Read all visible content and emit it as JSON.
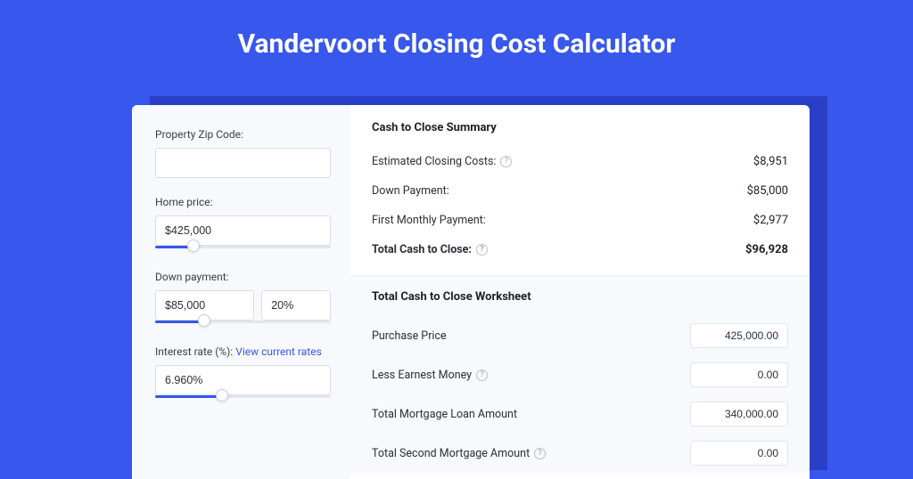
{
  "colors": {
    "page_bg": "#3757ed",
    "card_bg": "#ffffff",
    "panel_bg": "#f7f9fc",
    "shadow_bg": "#2a3fc7",
    "border": "#d8dde6",
    "text": "#2b2f36",
    "link": "#3757ed",
    "slider_fill": "#3757ed",
    "slider_track": "#e2e6ee"
  },
  "title": "Vandervoort Closing Cost Calculator",
  "left": {
    "zip": {
      "label": "Property Zip Code:",
      "value": ""
    },
    "home_price": {
      "label": "Home price:",
      "value": "$425,000",
      "slider_pct": 22
    },
    "down_payment": {
      "label": "Down payment:",
      "value": "$85,000",
      "pct": "20%",
      "slider_pct": 28
    },
    "interest": {
      "label_prefix": "Interest rate (%): ",
      "link_text": "View current rates",
      "value": "6.960%",
      "slider_pct": 38
    }
  },
  "summary": {
    "title": "Cash to Close Summary",
    "rows": [
      {
        "label": "Estimated Closing Costs:",
        "value": "$8,951",
        "help": true,
        "bold": false
      },
      {
        "label": "Down Payment:",
        "value": "$85,000",
        "help": false,
        "bold": false
      },
      {
        "label": "First Monthly Payment:",
        "value": "$2,977",
        "help": false,
        "bold": false
      },
      {
        "label": "Total Cash to Close:",
        "value": "$96,928",
        "help": true,
        "bold": true
      }
    ]
  },
  "worksheet": {
    "title": "Total Cash to Close Worksheet",
    "rows": [
      {
        "label": "Purchase Price",
        "value": "425,000.00",
        "help": false
      },
      {
        "label": "Less Earnest Money",
        "value": "0.00",
        "help": true
      },
      {
        "label": "Total Mortgage Loan Amount",
        "value": "340,000.00",
        "help": false
      },
      {
        "label": "Total Second Mortgage Amount",
        "value": "0.00",
        "help": true
      }
    ]
  }
}
